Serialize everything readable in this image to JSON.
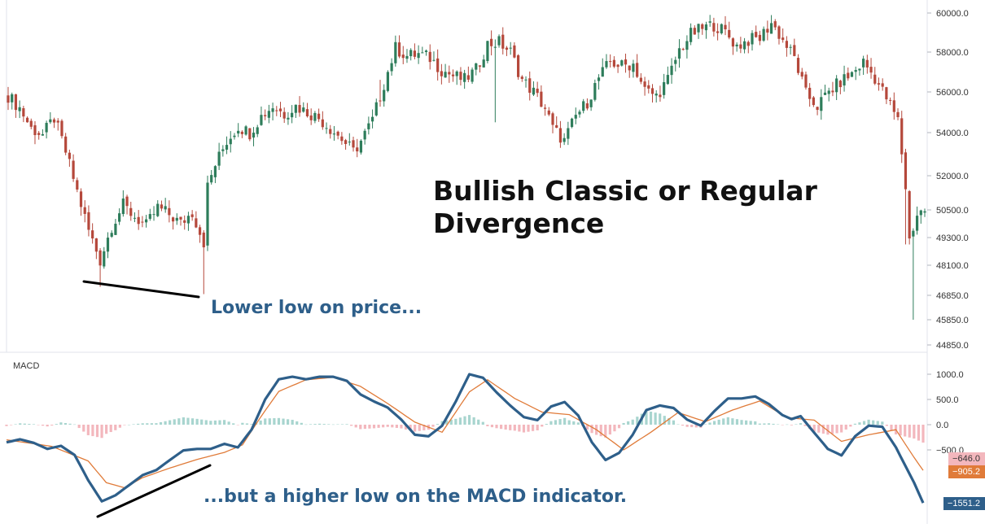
{
  "title": "Bullish Classic or Regular Divergence",
  "annotations": {
    "price_note": "Lower low on price...",
    "macd_note": "...but a higher low on the MACD indicator."
  },
  "macd_pane_label": "MACD",
  "colors": {
    "candle_up": "#2e7d5b",
    "candle_down": "#b5483b",
    "macd_line": "#2e5f8a",
    "signal_line": "#e07b39",
    "hist_pos": "#a8d5cf",
    "hist_neg": "#f3b7bd",
    "badge_signal_neg": "#f3b7bd",
    "badge_signal": "#e07b39",
    "badge_macd": "#2e5f8a"
  },
  "badges": {
    "hist_value": "−646.0",
    "signal_value": "−905.2",
    "macd_value": "−1551.2"
  },
  "chart_data": [
    {
      "type": "candlestick",
      "title": "Bullish Classic or Regular Divergence",
      "y_scale": "log",
      "y_tick_labels": [
        "60000.0",
        "58000.0",
        "56000.0",
        "54000.0",
        "52000.0",
        "50500.0",
        "49300.0",
        "48100.0",
        "46850.0",
        "45850.0",
        "44850.0"
      ],
      "close_path": [
        [
          0,
          55800
        ],
        [
          3,
          55200
        ],
        [
          6,
          54200
        ],
        [
          9,
          53900
        ],
        [
          12,
          54700
        ],
        [
          15,
          53100
        ],
        [
          18,
          51300
        ],
        [
          21,
          49600
        ],
        [
          24,
          48300
        ],
        [
          27,
          49800
        ],
        [
          30,
          50700
        ],
        [
          33,
          50200
        ],
        [
          36,
          49800
        ],
        [
          39,
          50600
        ],
        [
          42,
          50300
        ],
        [
          45,
          49900
        ],
        [
          48,
          50400
        ],
        [
          51,
          49100
        ],
        [
          52,
          51500
        ],
        [
          54,
          52500
        ],
        [
          57,
          53600
        ],
        [
          60,
          54300
        ],
        [
          63,
          54000
        ],
        [
          66,
          54800
        ],
        [
          69,
          55300
        ],
        [
          72,
          54900
        ],
        [
          75,
          55300
        ],
        [
          78,
          55000
        ],
        [
          81,
          54700
        ],
        [
          84,
          54200
        ],
        [
          87,
          53700
        ],
        [
          90,
          53100
        ],
        [
          92,
          53600
        ],
        [
          95,
          54600
        ],
        [
          98,
          56400
        ],
        [
          101,
          58200
        ],
        [
          104,
          57800
        ],
        [
          107,
          57900
        ],
        [
          110,
          57700
        ],
        [
          113,
          57100
        ],
        [
          116,
          56800
        ],
        [
          119,
          56600
        ],
        [
          122,
          57100
        ],
        [
          125,
          58400
        ],
        [
          128,
          58500
        ],
        [
          131,
          58000
        ],
        [
          134,
          56600
        ],
        [
          137,
          56000
        ],
        [
          140,
          55200
        ],
        [
          142,
          54200
        ],
        [
          145,
          53600
        ],
        [
          148,
          54800
        ],
        [
          151,
          55500
        ],
        [
          154,
          56700
        ],
        [
          157,
          57500
        ],
        [
          160,
          57300
        ],
        [
          163,
          57400
        ],
        [
          166,
          56100
        ],
        [
          169,
          55800
        ],
        [
          172,
          56600
        ],
        [
          175,
          58100
        ],
        [
          178,
          58900
        ],
        [
          181,
          59200
        ],
        [
          184,
          59400
        ],
        [
          187,
          59000
        ],
        [
          190,
          58300
        ],
        [
          193,
          58600
        ],
        [
          196,
          58700
        ],
        [
          199,
          59500
        ],
        [
          202,
          58600
        ],
        [
          205,
          57700
        ],
        [
          208,
          55900
        ],
        [
          211,
          55300
        ],
        [
          214,
          56000
        ],
        [
          217,
          56500
        ],
        [
          220,
          56900
        ],
        [
          223,
          57500
        ],
        [
          226,
          56700
        ],
        [
          229,
          55700
        ],
        [
          232,
          54600
        ],
        [
          234,
          51500
        ],
        [
          235,
          49200
        ],
        [
          237,
          50300
        ],
        [
          239,
          50500
        ]
      ]
    },
    {
      "type": "line",
      "name": "MACD",
      "y_tick_labels": [
        "1000.0",
        "500.0",
        "0.0",
        "−500.0"
      ],
      "series_macd": [
        [
          0,
          -350
        ],
        [
          3,
          -290
        ],
        [
          6,
          -360
        ],
        [
          9,
          -480
        ],
        [
          12,
          -420
        ],
        [
          15,
          -600
        ],
        [
          18,
          -1100
        ],
        [
          21,
          -1520
        ],
        [
          24,
          -1400
        ],
        [
          27,
          -1200
        ],
        [
          30,
          -1000
        ],
        [
          33,
          -900
        ],
        [
          36,
          -700
        ],
        [
          39,
          -510
        ],
        [
          42,
          -480
        ],
        [
          45,
          -480
        ],
        [
          48,
          -380
        ],
        [
          51,
          -450
        ],
        [
          54,
          -100
        ],
        [
          57,
          500
        ],
        [
          60,
          900
        ],
        [
          63,
          950
        ],
        [
          66,
          900
        ],
        [
          69,
          950
        ],
        [
          72,
          950
        ],
        [
          75,
          870
        ],
        [
          78,
          600
        ],
        [
          81,
          460
        ],
        [
          84,
          340
        ],
        [
          87,
          100
        ],
        [
          90,
          -200
        ],
        [
          93,
          -230
        ],
        [
          96,
          -20
        ],
        [
          99,
          460
        ],
        [
          102,
          1000
        ],
        [
          105,
          930
        ],
        [
          108,
          640
        ],
        [
          111,
          380
        ],
        [
          114,
          150
        ],
        [
          117,
          90
        ],
        [
          120,
          360
        ],
        [
          123,
          450
        ],
        [
          126,
          180
        ],
        [
          129,
          -350
        ],
        [
          132,
          -700
        ],
        [
          135,
          -560
        ],
        [
          138,
          -200
        ],
        [
          141,
          290
        ],
        [
          144,
          380
        ],
        [
          147,
          330
        ],
        [
          150,
          100
        ],
        [
          153,
          -20
        ],
        [
          156,
          270
        ],
        [
          159,
          520
        ],
        [
          162,
          520
        ],
        [
          165,
          560
        ],
        [
          168,
          410
        ],
        [
          171,
          190
        ],
        [
          173,
          110
        ],
        [
          175,
          170
        ],
        [
          178,
          -160
        ],
        [
          181,
          -480
        ],
        [
          184,
          -610
        ],
        [
          187,
          -230
        ],
        [
          190,
          -20
        ],
        [
          193,
          -40
        ],
        [
          196,
          -450
        ],
        [
          198,
          -800
        ],
        [
          200,
          -1150
        ],
        [
          202,
          -1551
        ]
      ],
      "series_signal": [
        [
          0,
          -300
        ],
        [
          10,
          -430
        ],
        [
          18,
          -720
        ],
        [
          22,
          -1150
        ],
        [
          26,
          -1250
        ],
        [
          30,
          -1050
        ],
        [
          36,
          -860
        ],
        [
          42,
          -690
        ],
        [
          48,
          -550
        ],
        [
          52,
          -400
        ],
        [
          56,
          150
        ],
        [
          60,
          660
        ],
        [
          66,
          890
        ],
        [
          72,
          940
        ],
        [
          78,
          760
        ],
        [
          84,
          420
        ],
        [
          90,
          50
        ],
        [
          96,
          -150
        ],
        [
          102,
          650
        ],
        [
          106,
          890
        ],
        [
          112,
          520
        ],
        [
          118,
          250
        ],
        [
          124,
          200
        ],
        [
          130,
          -100
        ],
        [
          136,
          -500
        ],
        [
          142,
          -150
        ],
        [
          148,
          240
        ],
        [
          154,
          60
        ],
        [
          160,
          290
        ],
        [
          166,
          470
        ],
        [
          172,
          140
        ],
        [
          178,
          90
        ],
        [
          184,
          -330
        ],
        [
          190,
          -200
        ],
        [
          196,
          -100
        ],
        [
          200,
          -650
        ],
        [
          202,
          -905
        ]
      ],
      "histogram_sign_pattern": "positive where MACD above signal, negative otherwise"
    }
  ]
}
